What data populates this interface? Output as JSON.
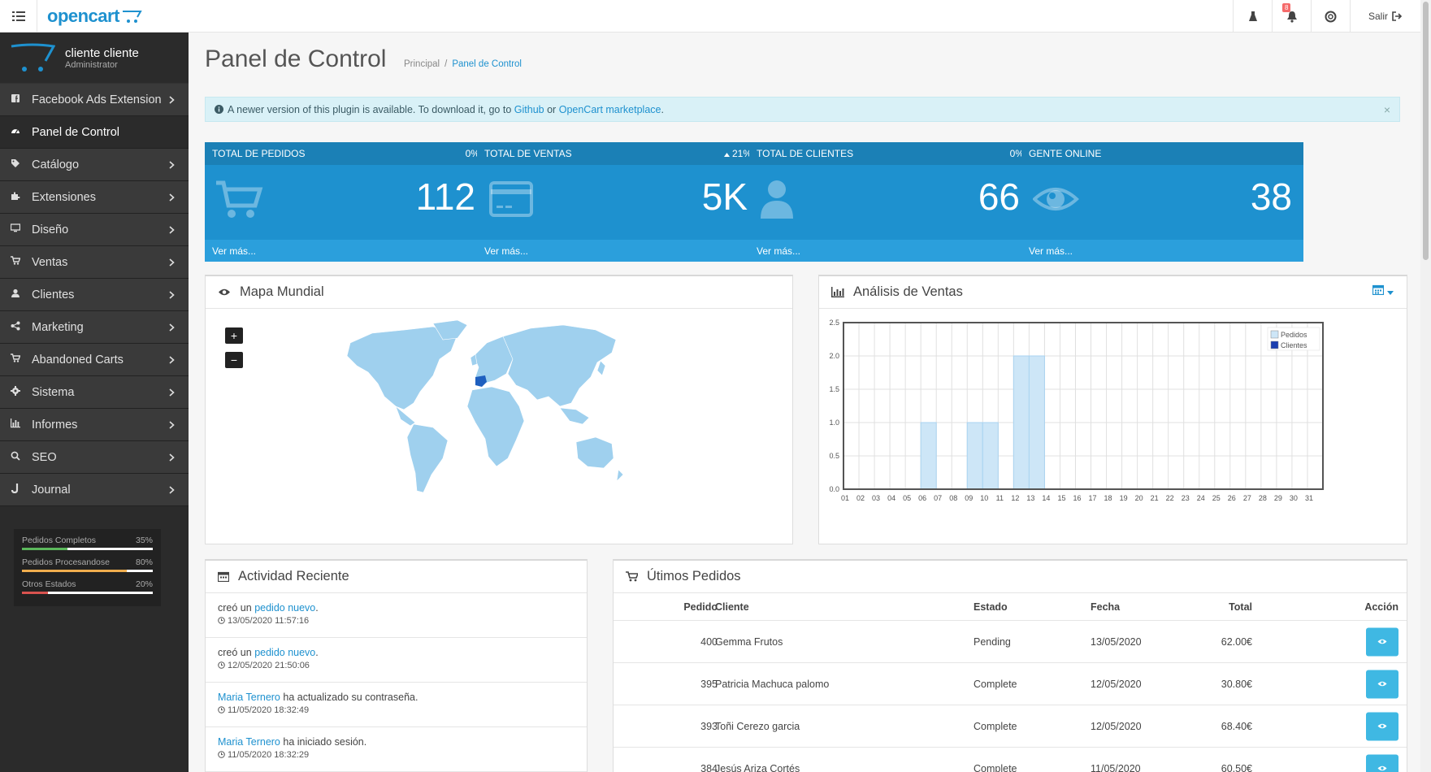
{
  "header": {
    "logo_text": "opencart",
    "notification_count": "8",
    "logout_label": "Salir"
  },
  "profile": {
    "name": "cliente cliente",
    "role": "Administrator"
  },
  "sidebar": {
    "items": [
      {
        "label": "Facebook Ads Extension",
        "icon": "facebook-icon"
      },
      {
        "label": "Panel de Control",
        "icon": "dashboard-icon"
      },
      {
        "label": "Catálogo",
        "icon": "tags-icon"
      },
      {
        "label": "Extensiones",
        "icon": "puzzle-icon"
      },
      {
        "label": "Diseño",
        "icon": "monitor-icon"
      },
      {
        "label": "Ventas",
        "icon": "cart-icon"
      },
      {
        "label": "Clientes",
        "icon": "user-icon"
      },
      {
        "label": "Marketing",
        "icon": "share-icon"
      },
      {
        "label": "Abandoned Carts",
        "icon": "cart-icon"
      },
      {
        "label": "Sistema",
        "icon": "cog-icon"
      },
      {
        "label": "Informes",
        "icon": "bar-chart-icon"
      },
      {
        "label": "SEO",
        "icon": "search-icon"
      },
      {
        "label": "Journal",
        "icon": "journal-icon"
      }
    ],
    "stats": [
      {
        "label": "Pedidos Completos",
        "value": "35%",
        "percent": 35,
        "color": "#5cb85c"
      },
      {
        "label": "Pedidos Procesandose",
        "value": "80%",
        "percent": 80,
        "color": "#f0ad4e"
      },
      {
        "label": "Otros Estados",
        "value": "20%",
        "percent": 20,
        "color": "#d9534f"
      }
    ]
  },
  "page": {
    "title": "Panel de Control",
    "breadcrumb_home": "Principal",
    "breadcrumb_sep": "/",
    "breadcrumb_current": "Panel de Control"
  },
  "alert": {
    "text_before": "A newer version of this plugin is available. To download it, go to",
    "link1": "Github",
    "text_mid": "or",
    "link2": "OpenCart marketplace",
    "text_after": ".",
    "close": "×"
  },
  "tiles": [
    {
      "title": "TOTAL DE PEDIDOS",
      "percent": "0%",
      "value": "112",
      "more": "Ver más...",
      "icon": "cart-icon"
    },
    {
      "title": "TOTAL DE VENTAS",
      "percent": "21%",
      "value": "5K",
      "more": "Ver más...",
      "icon": "credit-card-icon"
    },
    {
      "title": "TOTAL DE CLIENTES",
      "percent": "0%",
      "value": "66",
      "more": "Ver más...",
      "icon": "user-icon"
    },
    {
      "title": "GENTE ONLINE",
      "percent": "",
      "value": "38",
      "more": "Ver más...",
      "icon": "eye-icon"
    }
  ],
  "map": {
    "title": "Mapa Mundial",
    "zoom_in": "+",
    "zoom_out": "−",
    "highlight_color": "#1e5fbf",
    "land_color": "#9fd0ee"
  },
  "sales": {
    "title": "Análisis de Ventas"
  },
  "chart_data": {
    "type": "bar",
    "categories": [
      "01",
      "02",
      "03",
      "04",
      "05",
      "06",
      "07",
      "08",
      "09",
      "10",
      "11",
      "12",
      "13",
      "14",
      "15",
      "16",
      "17",
      "18",
      "19",
      "20",
      "21",
      "22",
      "23",
      "24",
      "25",
      "26",
      "27",
      "28",
      "29",
      "30",
      "31"
    ],
    "series": [
      {
        "name": "Pedidos",
        "color": "#cde6f7",
        "values": [
          0,
          0,
          0,
          0,
          0,
          1,
          0,
          0,
          1,
          1,
          0,
          2,
          2,
          0,
          0,
          0,
          0,
          0,
          0,
          0,
          0,
          0,
          0,
          0,
          0,
          0,
          0,
          0,
          0,
          0,
          0
        ]
      },
      {
        "name": "Clientes",
        "color": "#1c3fb0",
        "values": [
          0,
          0,
          0,
          0,
          0,
          0,
          0,
          0,
          0,
          0,
          0,
          0,
          0,
          0,
          0,
          0,
          0,
          0,
          0,
          0,
          0,
          0,
          0,
          0,
          0,
          0,
          0,
          0,
          0,
          0,
          0
        ]
      }
    ],
    "yticks": [
      "0.0",
      "0.5",
      "1.0",
      "1.5",
      "2.0",
      "2.5"
    ],
    "ylim": [
      0,
      2.5
    ],
    "grid": true,
    "legend_position": "top-right"
  },
  "activity": {
    "title": "Actividad Reciente",
    "items": [
      {
        "actor": "",
        "prefix": "creó un",
        "link": "pedido nuevo",
        "suffix": ".",
        "time": "13/05/2020 11:57:16"
      },
      {
        "actor": "",
        "prefix": "creó un",
        "link": "pedido nuevo",
        "suffix": ".",
        "time": "12/05/2020 21:50:06"
      },
      {
        "actor": "Maria Ternero",
        "prefix": "ha actualizado su contraseña.",
        "link": "",
        "suffix": "",
        "time": "11/05/2020 18:32:49"
      },
      {
        "actor": "Maria Ternero",
        "prefix": "ha iniciado sesión.",
        "link": "",
        "suffix": "",
        "time": "11/05/2020 18:32:29"
      }
    ]
  },
  "orders": {
    "title": "Útimos Pedidos",
    "columns": {
      "order": "Pedido",
      "customer": "Cliente",
      "status": "Estado",
      "date": "Fecha",
      "total": "Total",
      "action": "Acción"
    },
    "rows": [
      {
        "order": "400",
        "customer": "Gemma Frutos",
        "status": "Pending",
        "date": "13/05/2020",
        "total": "62.00€"
      },
      {
        "order": "395",
        "customer": "Patricia Machuca palomo",
        "status": "Complete",
        "date": "12/05/2020",
        "total": "30.80€"
      },
      {
        "order": "393",
        "customer": "Toñi Cerezo garcia",
        "status": "Complete",
        "date": "12/05/2020",
        "total": "68.40€"
      },
      {
        "order": "384",
        "customer": "Jesús Ariza Cortés",
        "status": "Complete",
        "date": "11/05/2020",
        "total": "60.50€"
      }
    ]
  }
}
